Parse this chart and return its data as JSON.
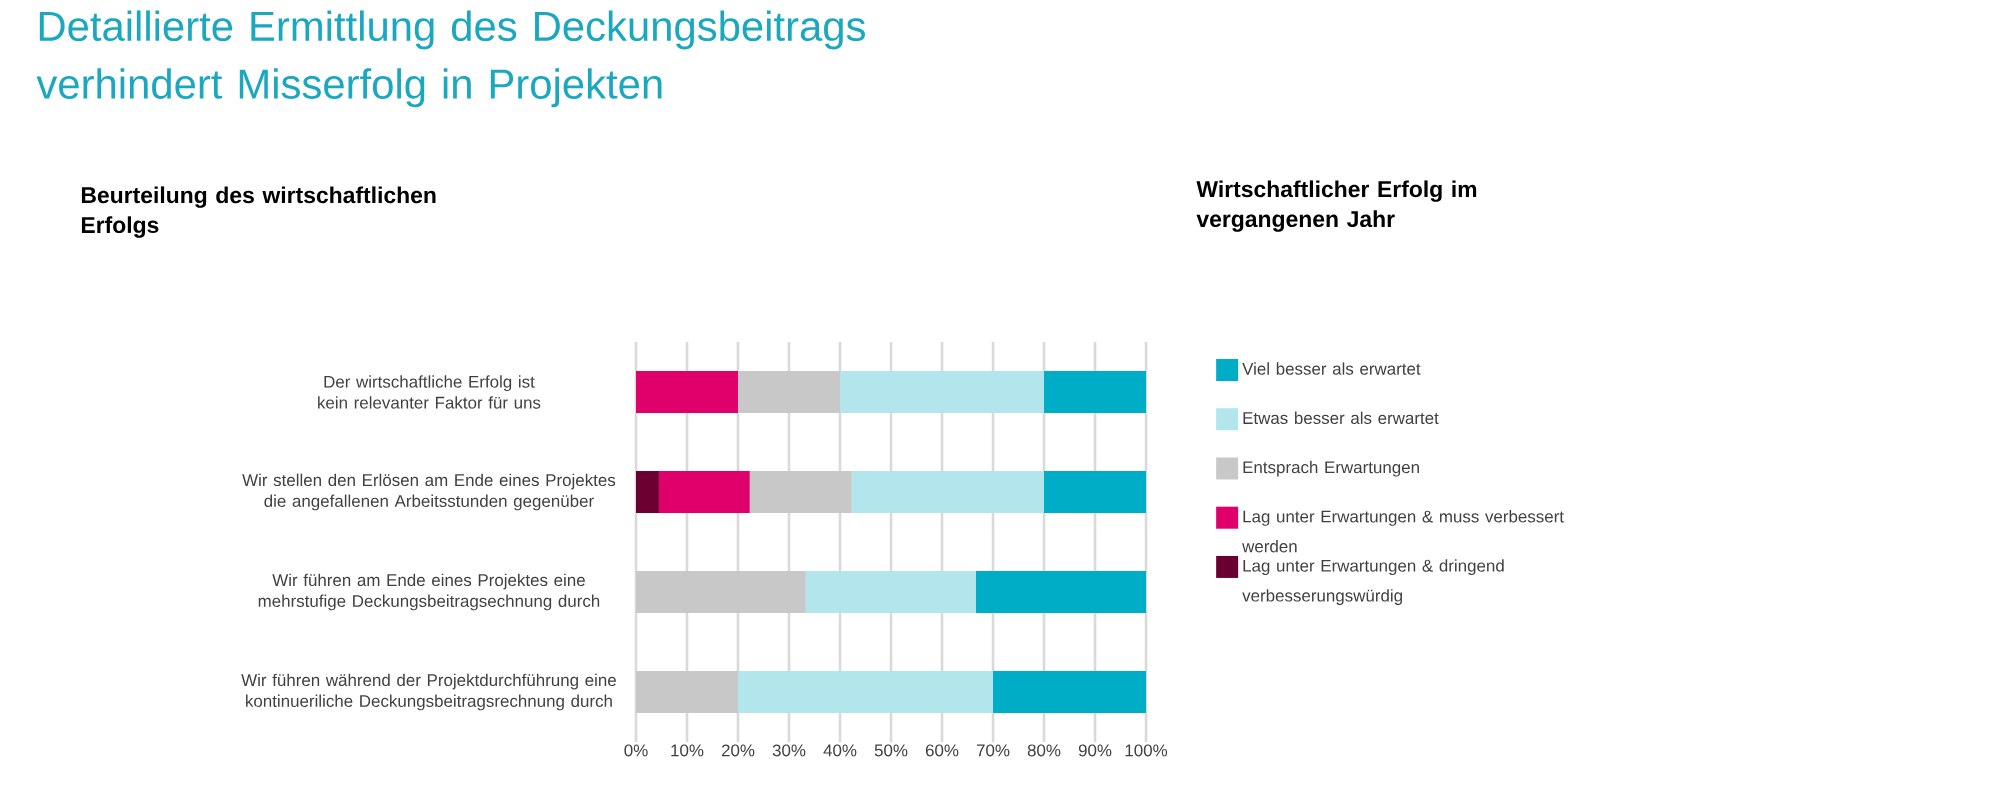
{
  "chart_data": {
    "type": "bar",
    "orientation": "horizontal",
    "stacked": true,
    "title": "Detaillierte Ermittlung des Deckungsbeitrags verhindert Misserfolg in Projekten",
    "subtitle": "Beurteilung des wirtschaftlichen Erfolgs",
    "legend_title": "Wirtschaftlicher Erfolg im vergangenen Jahr",
    "categories": [
      "Der wirtschaftliche Erfolg ist kein relevanter Faktor für uns",
      "Wir stellen den Erlösen am Ende eines Projektes die angefallenen Arbeitsstunden gegenüber",
      "Wir führen am Ende eines Projektes eine mehrstufige Deckungsbeitragsechnung durch",
      "Wir führen während der Projektdurchführung eine kontinueriliche Deckungsbeitragsrechnung durch"
    ],
    "series": [
      {
        "name": "Lag unter Erwartungen & dringend verbesserungswürdig",
        "color": "#6a0032",
        "values": [
          0,
          4.5,
          0,
          0
        ]
      },
      {
        "name": "Lag unter Erwartungen & muss verbessert werden",
        "color": "#e0006c",
        "values": [
          20,
          17.8,
          0,
          0
        ]
      },
      {
        "name": "Entsprach Erwartungen",
        "color": "#c8c8c8",
        "values": [
          20,
          20,
          33.3,
          20
        ]
      },
      {
        "name": "Etwas besser als erwartet",
        "color": "#b2e5ec",
        "values": [
          40,
          37.7,
          33.3,
          50
        ]
      },
      {
        "name": "Viel besser als erwartet",
        "color": "#00adc6",
        "values": [
          20,
          20,
          33.4,
          30
        ]
      }
    ],
    "xlim": [
      0,
      100
    ],
    "xticks": [
      {
        "value": 0,
        "label": "0%"
      },
      {
        "value": 10,
        "label": "10%"
      },
      {
        "value": 20,
        "label": "20%"
      },
      {
        "value": 30,
        "label": "30%"
      },
      {
        "value": 40,
        "label": "40%"
      },
      {
        "value": 50,
        "label": "50%"
      },
      {
        "value": 60,
        "label": "60%"
      },
      {
        "value": 70,
        "label": "70%"
      },
      {
        "value": 80,
        "label": "80%"
      },
      {
        "value": 90,
        "label": "90%"
      },
      {
        "value": 100,
        "label": "100%"
      }
    ],
    "grid": "x",
    "legend": "right"
  }
}
